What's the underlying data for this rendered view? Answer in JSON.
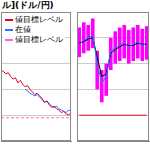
{
  "title": "ル](ドル/円)",
  "chart_data": [
    {
      "type": "line",
      "legend": "top-left",
      "grid": true,
      "tick_labels": false,
      "categories": [
        null,
        null,
        null,
        null,
        null,
        null,
        null,
        null,
        null,
        null,
        null,
        null,
        null,
        null,
        null,
        null,
        null,
        null,
        null,
        null,
        null,
        null,
        null,
        null,
        null,
        null,
        null,
        null,
        null,
        null
      ],
      "ylim": [
        0,
        100
      ],
      "yticks": [
        20,
        40,
        60,
        80
      ],
      "series": [
        {
          "name": "値目標レベル",
          "color": "#e8002a",
          "values": [
            55,
            54,
            52,
            53,
            50,
            48,
            49,
            45,
            47,
            44,
            42,
            43,
            40,
            38,
            36,
            37,
            35,
            33,
            30,
            31,
            28,
            26,
            27,
            25,
            24,
            22,
            23,
            21,
            20,
            22
          ]
        },
        {
          "name": "在値",
          "color": "#1e78ff",
          "values": [
            null,
            null,
            null,
            null,
            null,
            null,
            null,
            null,
            null,
            null,
            40,
            39,
            37,
            36,
            35,
            36,
            34,
            32,
            30,
            31,
            29,
            27,
            26,
            27,
            25,
            24,
            23,
            22,
            24,
            23
          ]
        },
        {
          "name": "値目標レベル",
          "color": "#ff66cc",
          "line_style": "dashed",
          "values": [
            18,
            18,
            18,
            18,
            18,
            18,
            18,
            18,
            18,
            18,
            18,
            18,
            18,
            18,
            18,
            18,
            18,
            18,
            18,
            18,
            18,
            18,
            18,
            18,
            18,
            18,
            18,
            18,
            18,
            18
          ]
        }
      ]
    },
    {
      "type": "bar",
      "grid": true,
      "tick_labels": false,
      "categories": [
        null,
        null,
        null,
        null,
        null,
        null,
        null,
        null,
        null,
        null,
        null,
        null,
        null,
        null,
        null,
        null
      ],
      "ylim": [
        0,
        100
      ],
      "yticks": [
        20,
        40,
        60,
        80
      ],
      "series": [
        {
          "type": "bar",
          "color": "#ff00ff",
          "values": [
            [
              65,
              88
            ],
            [
              68,
              92
            ],
            [
              70,
              90
            ],
            [
              72,
              95
            ],
            [
              40,
              70
            ],
            [
              30,
              55
            ],
            [
              35,
              60
            ],
            [
              55,
              80
            ],
            [
              60,
              85
            ],
            [
              62,
              88
            ],
            [
              64,
              90
            ],
            [
              60,
              86
            ],
            [
              62,
              88
            ],
            [
              64,
              90
            ],
            [
              62,
              87
            ],
            [
              63,
              89
            ]
          ]
        },
        {
          "type": "line",
          "color": "#1e78ff",
          "values": [
            75,
            78,
            80,
            82,
            60,
            45,
            50,
            70,
            72,
            74,
            76,
            73,
            75,
            77,
            74,
            76
          ]
        },
        {
          "type": "line",
          "color": "#000000",
          "values": [
            76,
            77,
            79,
            80,
            65,
            50,
            52,
            68,
            71,
            73,
            75,
            74,
            74,
            76,
            75,
            75
          ]
        },
        {
          "type": "line",
          "color": "#e8002a",
          "values": [
            20,
            20,
            20,
            20,
            20,
            20,
            20,
            20,
            20,
            20,
            20,
            20,
            20,
            20,
            20,
            20
          ]
        }
      ]
    }
  ]
}
